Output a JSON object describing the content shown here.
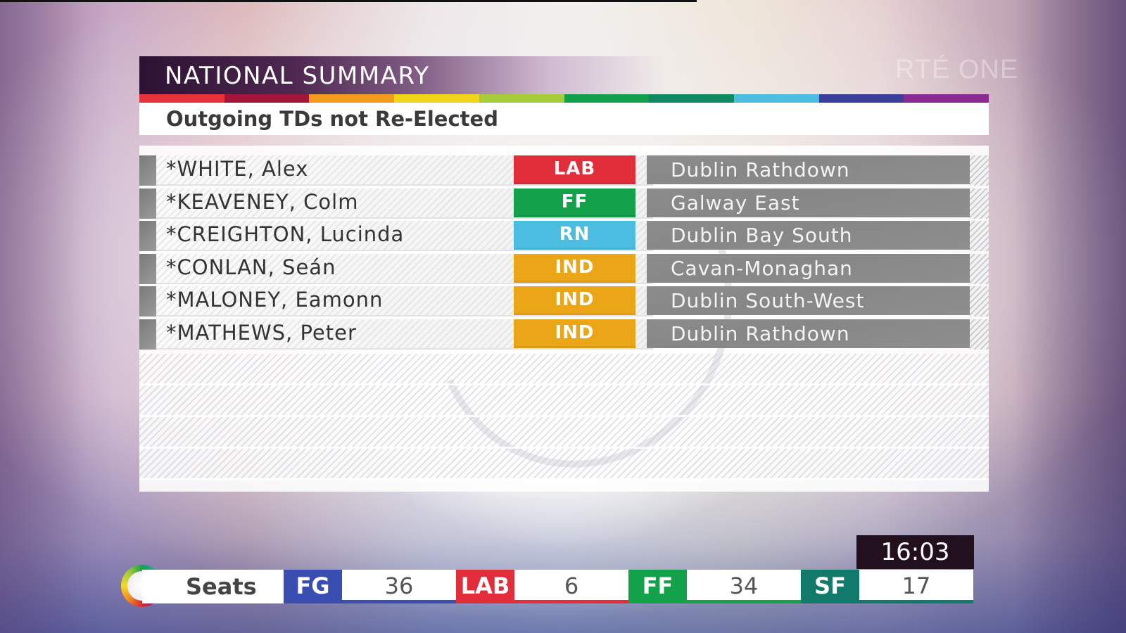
{
  "channel": {
    "watermark": "RTÉ ONE"
  },
  "header": {
    "title": "NATIONAL SUMMARY",
    "subtitle": "Outgoing TDs not Re-Elected",
    "stripe_colors": [
      "#e8323a",
      "#a3153a",
      "#f29b1a",
      "#f2d51a",
      "#a6cc3a",
      "#13a04c",
      "#0f8a62",
      "#4bbde0",
      "#3a3f9a",
      "#8a2a92"
    ]
  },
  "table": {
    "rows": [
      {
        "name": "*WHITE, Alex",
        "party": "LAB",
        "party_color": "#e22d3a",
        "constituency": "Dublin Rathdown"
      },
      {
        "name": "*KEAVENEY, Colm",
        "party": "FF",
        "party_color": "#13a14a",
        "constituency": "Galway East"
      },
      {
        "name": "*CREIGHTON, Lucinda",
        "party": "RN",
        "party_color": "#4bbde0",
        "constituency": "Dublin Bay South"
      },
      {
        "name": "*CONLAN, Seán",
        "party": "IND",
        "party_color": "#eba617",
        "constituency": "Cavan-Monaghan"
      },
      {
        "name": "*MALONEY, Eamonn",
        "party": "IND",
        "party_color": "#eba617",
        "constituency": "Dublin South-West"
      },
      {
        "name": "*MATHEWS, Peter",
        "party": "IND",
        "party_color": "#eba617",
        "constituency": "Dublin Rathdown"
      }
    ]
  },
  "seats_bar": {
    "label": "Seats",
    "clock": "16:03",
    "parties": [
      {
        "abbr": "FG",
        "seats": "36",
        "color": "#3a4db0"
      },
      {
        "abbr": "LAB",
        "seats": "6",
        "color": "#e22d3a"
      },
      {
        "abbr": "FF",
        "seats": "34",
        "color": "#13a14a"
      },
      {
        "abbr": "SF",
        "seats": "17",
        "color": "#127a6a"
      }
    ]
  }
}
